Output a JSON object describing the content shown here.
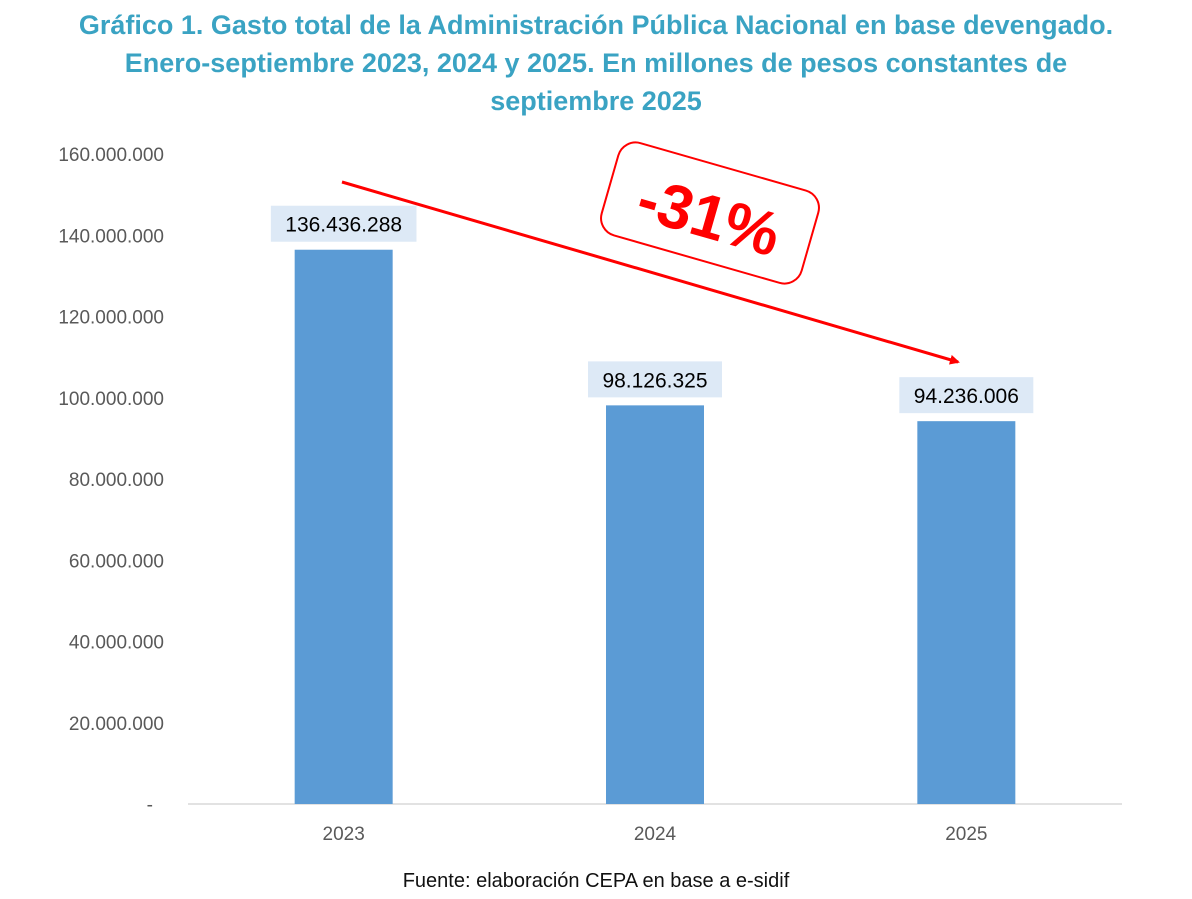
{
  "title_lines": [
    "Gráfico 1. Gasto total de la Administración Pública Nacional en base devengado.",
    "Enero-septiembre 2023, 2024 y 2025. En millones de pesos constantes de",
    "septiembre 2025"
  ],
  "source": "Fuente: elaboración CEPA en base a e-sidif",
  "colors": {
    "title": "#3aa3c3",
    "bar": "#5b9bd5",
    "label_bg": "#dde9f6",
    "annotation": "#ff0000",
    "axis_text": "#595959"
  },
  "chart_data": {
    "type": "bar",
    "categories": [
      "2023",
      "2024",
      "2025"
    ],
    "values": [
      136436288,
      98126325,
      94236006
    ],
    "value_labels": [
      "136.436.288",
      "98.126.325",
      "94.236.006"
    ],
    "ylim": [
      0,
      160000000
    ],
    "yticks": [
      0,
      20000000,
      40000000,
      60000000,
      80000000,
      100000000,
      120000000,
      140000000,
      160000000
    ],
    "ytick_labels": [
      "-",
      "20.000.000",
      "40.000.000",
      "60.000.000",
      "80.000.000",
      "100.000.000",
      "120.000.000",
      "140.000.000",
      "160.000.000"
    ],
    "grid": false,
    "annotation": {
      "text": "-31%",
      "type": "trend-arrow",
      "from_category": "2023",
      "to_category": "2025"
    }
  }
}
